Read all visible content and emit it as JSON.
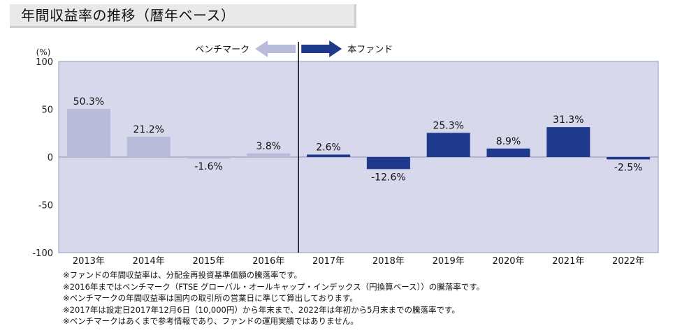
{
  "title": "年間収益率の推移（暦年ベース）",
  "colors": {
    "plot_bg": "#d7d8ec",
    "benchmark_bar": "#b8bbda",
    "fund_bar": "#1f3a8c",
    "benchmark_arrow": "#b8bbda",
    "fund_arrow": "#1f3a8c",
    "divider": "#000000"
  },
  "arrows": {
    "left_label": "ベンチマーク",
    "right_label": "本ファンド"
  },
  "chart_data": {
    "type": "bar",
    "ylabel": "(%)",
    "ylim": [
      -100,
      100
    ],
    "yticks": [
      100,
      50,
      0,
      -50,
      -100
    ],
    "grid": false,
    "categories": [
      "2013年",
      "2014年",
      "2015年",
      "2016年",
      "2017年",
      "2018年",
      "2019年",
      "2020年",
      "2021年",
      "2022年"
    ],
    "series": [
      {
        "name": "ベンチマーク",
        "values": [
          50.3,
          21.2,
          -1.6,
          3.8,
          null,
          null,
          null,
          null,
          null,
          null
        ]
      },
      {
        "name": "本ファンド",
        "values": [
          null,
          null,
          null,
          null,
          2.6,
          -12.6,
          25.3,
          8.9,
          31.3,
          -2.5
        ]
      }
    ],
    "data_labels": [
      "50.3%",
      "21.2%",
      "-1.6%",
      "3.8%",
      "2.6%",
      "-12.6%",
      "25.3%",
      "8.9%",
      "31.3%",
      "-2.5%"
    ]
  },
  "notes": [
    "※ファンドの年間収益率は、分配金再投資基準価額の騰落率です。",
    "※2016年まではベンチマーク（FTSE グローバル・オールキャップ・インデックス（円換算ベース））の騰落率です。",
    "※ベンチマークの年間収益率は国内の取引所の営業日に準じて算出しております。",
    "※2017年は設定日2017年12月6日（10,000円）から年末まで、2022年は年初から5月末までの騰落率です。",
    "※ベンチマークはあくまで参考情報であり、ファンドの運用実績ではありません。"
  ]
}
